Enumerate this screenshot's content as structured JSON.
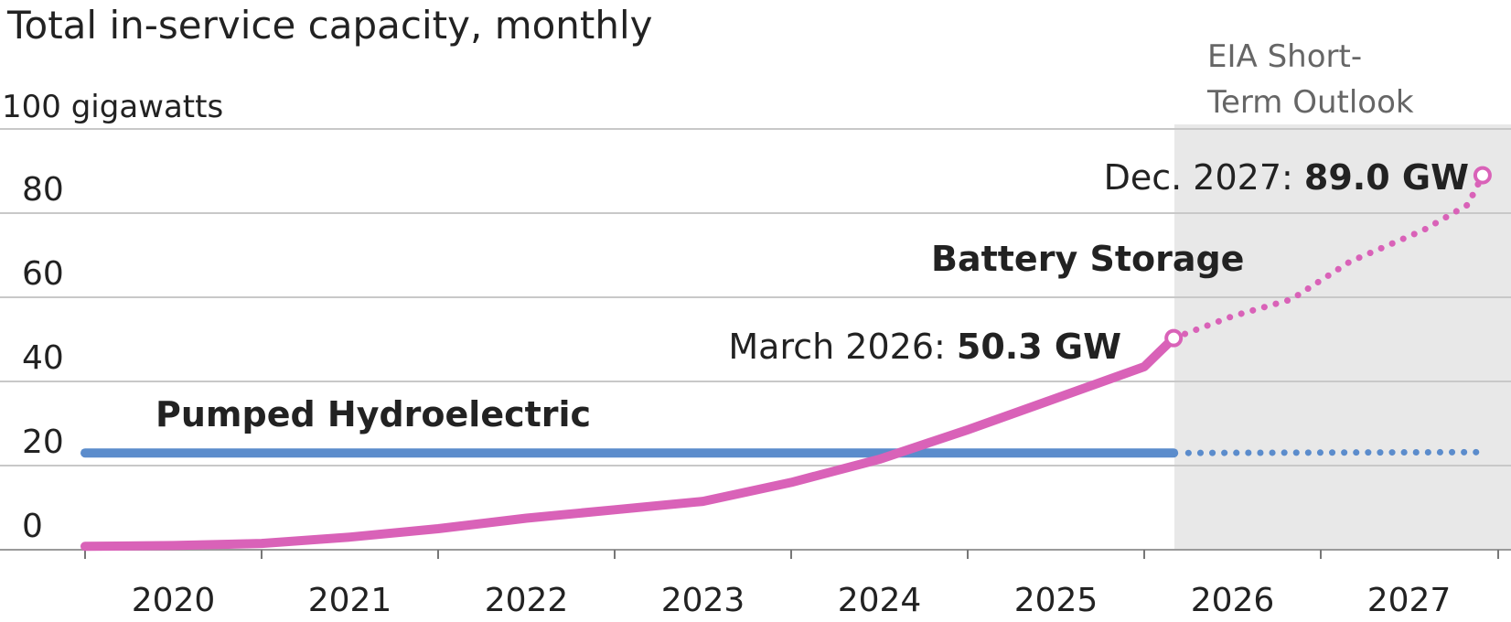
{
  "chart_data": {
    "type": "line",
    "title": "Total in-service capacity, monthly",
    "y_unit_label": "100 gigawatts",
    "ylim": [
      0,
      100
    ],
    "y_ticks": [
      "0",
      "20",
      "40",
      "60",
      "80"
    ],
    "x_ticks": [
      "2020",
      "2021",
      "2022",
      "2023",
      "2024",
      "2025",
      "2026",
      "2027"
    ],
    "xlim": [
      "2020-01",
      "2027-12"
    ],
    "grid": true,
    "projection_label": [
      "EIA Short-",
      "Term Outlook"
    ],
    "projection_start": "2026-04",
    "series": [
      {
        "name": "Battery Storage",
        "color": "#d962b8",
        "actual": [
          [
            "2020-01",
            0.8
          ],
          [
            "2020-07",
            1.0
          ],
          [
            "2021-01",
            1.5
          ],
          [
            "2021-07",
            3.0
          ],
          [
            "2022-01",
            5.0
          ],
          [
            "2022-07",
            7.5
          ],
          [
            "2023-01",
            9.5
          ],
          [
            "2023-07",
            11.5
          ],
          [
            "2024-01",
            16.0
          ],
          [
            "2024-07",
            21.5
          ],
          [
            "2025-01",
            28.5
          ],
          [
            "2025-07",
            36.0
          ],
          [
            "2026-01",
            43.5
          ],
          [
            "2026-03",
            50.3
          ]
        ],
        "projection": [
          [
            "2026-03",
            50.3
          ],
          [
            "2026-07",
            55.5
          ],
          [
            "2026-11",
            59.5
          ],
          [
            "2027-03",
            68.5
          ],
          [
            "2027-08",
            76.0
          ],
          [
            "2027-11",
            82.0
          ],
          [
            "2027-12",
            89.0
          ]
        ]
      },
      {
        "name": "Pumped Hydroelectric",
        "color": "#5b8ccc",
        "actual": [
          [
            "2020-01",
            23.0
          ],
          [
            "2026-03",
            23.0
          ]
        ],
        "projection": [
          [
            "2026-04",
            23.0
          ],
          [
            "2027-12",
            23.2
          ]
        ]
      }
    ],
    "annotations": [
      {
        "prefix": "March 2026:",
        "value": "50.3 GW"
      },
      {
        "prefix": "Dec. 2027:",
        "value": "89.0 GW"
      }
    ]
  }
}
